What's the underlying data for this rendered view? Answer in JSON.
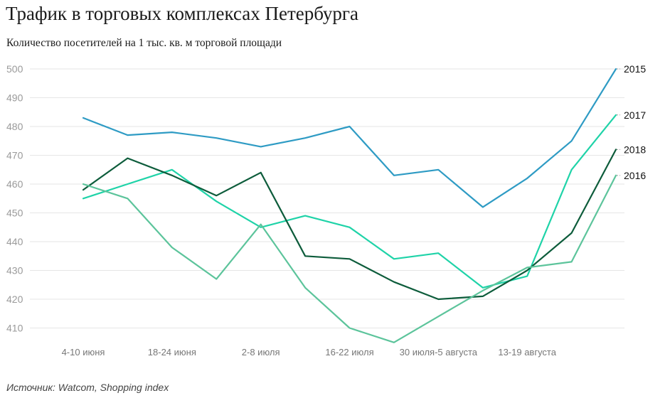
{
  "chart_data": {
    "type": "line",
    "title": "Трафик в торговых комплексах Петербурга",
    "subtitle": "Количество посетителей на 1 тыс. кв. м торговой площади",
    "source": "Источник: Watcom, Shopping index",
    "ylim": [
      400,
      500
    ],
    "yticks": [
      410,
      420,
      430,
      440,
      450,
      460,
      470,
      480,
      490,
      500
    ],
    "xtick_labels": [
      {
        "index": 0,
        "label": "4-10 июня"
      },
      {
        "index": 2,
        "label": "18-24 июня"
      },
      {
        "index": 4,
        "label": "2-8 июля"
      },
      {
        "index": 6,
        "label": "16-22 июля"
      },
      {
        "index": 8,
        "label": "30 июля-5 августа"
      },
      {
        "index": 10,
        "label": "13-19 августа"
      }
    ],
    "grid": true,
    "legend": "right-end labels",
    "series": [
      {
        "name": "2015",
        "color": "#2e9bc4",
        "values": [
          483,
          477,
          478,
          476,
          473,
          476,
          480,
          463,
          465,
          452,
          462,
          475,
          500
        ]
      },
      {
        "name": "2017",
        "color": "#1fd3a8",
        "values": [
          455,
          460,
          465,
          454,
          445,
          449,
          445,
          434,
          436,
          424,
          428,
          465,
          484
        ]
      },
      {
        "name": "2018",
        "color": "#0d5c3b",
        "values": [
          458,
          469,
          463,
          456,
          464,
          435,
          434,
          426,
          420,
          421,
          430,
          443,
          472
        ]
      },
      {
        "name": "2016",
        "color": "#5cc49b",
        "values": [
          460,
          455,
          438,
          427,
          446,
          424,
          410,
          405,
          414,
          423,
          431,
          433,
          463
        ]
      }
    ]
  }
}
